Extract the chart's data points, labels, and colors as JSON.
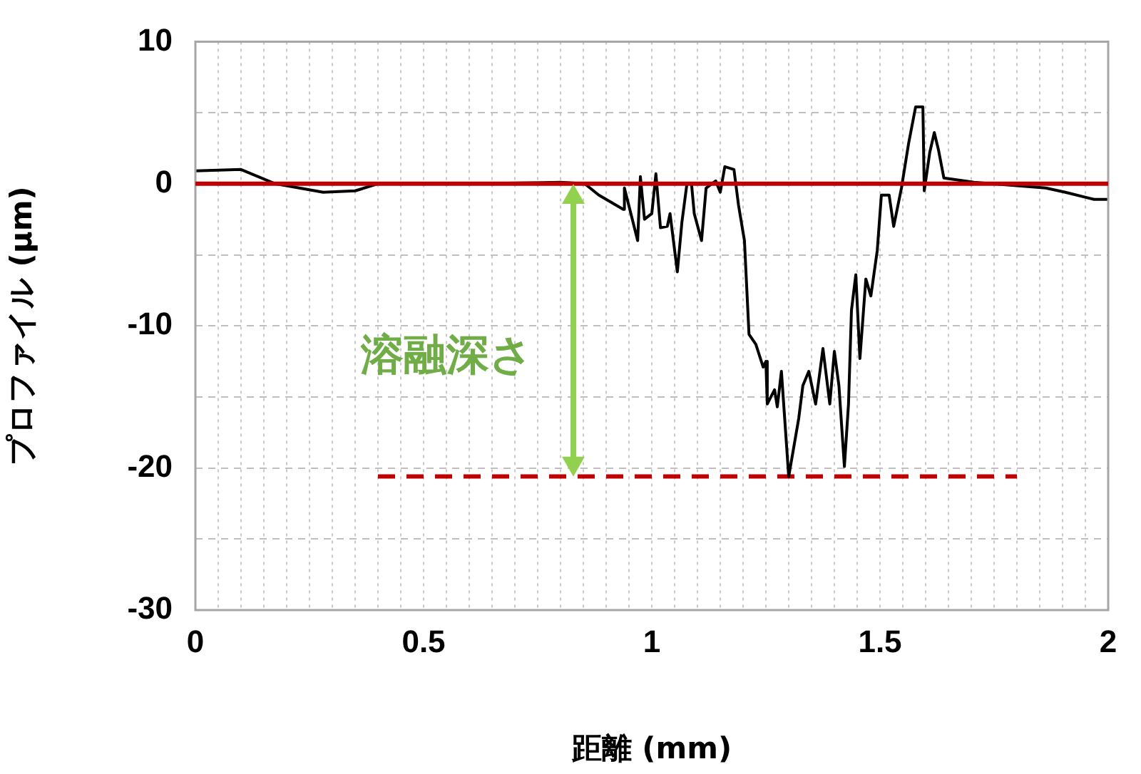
{
  "chart_data": {
    "type": "line",
    "xlabel": "距離 (mm)",
    "ylabel": "プロファイル (μm)",
    "xlim": [
      0,
      2
    ],
    "ylim": [
      -30,
      10
    ],
    "xticks": [
      0,
      {
        "value": 0.05,
        "label": null
      },
      {
        "value": 0.1,
        "label": null
      },
      {
        "value": 0.15,
        "label": null
      },
      {
        "value": 0.2,
        "label": null
      },
      {
        "value": 0.25,
        "label": null
      },
      {
        "value": 0.3,
        "label": null
      },
      {
        "value": 0.35,
        "label": null
      },
      {
        "value": 0.4,
        "label": null
      },
      {
        "value": 0.45,
        "label": null
      },
      0.5,
      {
        "value": 0.55,
        "label": null
      },
      {
        "value": 0.6,
        "label": null
      },
      {
        "value": 0.65,
        "label": null
      },
      {
        "value": 0.7,
        "label": null
      },
      {
        "value": 0.75,
        "label": null
      },
      {
        "value": 0.8,
        "label": null
      },
      {
        "value": 0.85,
        "label": null
      },
      {
        "value": 0.9,
        "label": null
      },
      {
        "value": 0.95,
        "label": null
      },
      1,
      {
        "value": 1.05,
        "label": null
      },
      {
        "value": 1.1,
        "label": null
      },
      {
        "value": 1.15,
        "label": null
      },
      {
        "value": 1.2,
        "label": null
      },
      {
        "value": 1.25,
        "label": null
      },
      {
        "value": 1.3,
        "label": null
      },
      {
        "value": 1.35,
        "label": null
      },
      {
        "value": 1.4,
        "label": null
      },
      {
        "value": 1.45,
        "label": null
      },
      1.5,
      {
        "value": 1.55,
        "label": null
      },
      {
        "value": 1.6,
        "label": null
      },
      {
        "value": 1.65,
        "label": null
      },
      {
        "value": 1.7,
        "label": null
      },
      {
        "value": 1.75,
        "label": null
      },
      {
        "value": 1.8,
        "label": null
      },
      {
        "value": 1.85,
        "label": null
      },
      {
        "value": 1.9,
        "label": null
      },
      {
        "value": 1.95,
        "label": null
      },
      2
    ],
    "yticks": [
      -30,
      {
        "value": -25,
        "label": null
      },
      -20,
      {
        "value": -15,
        "label": null
      },
      -10,
      {
        "value": -5,
        "label": null
      },
      0,
      {
        "value": 5,
        "label": null
      },
      10
    ],
    "grid": true,
    "marker": "none",
    "series": [
      {
        "color": "#000000",
        "x": [
          0,
          0.1,
          0.175,
          0.28,
          0.35,
          0.4,
          0.6,
          0.8,
          0.853,
          0.884,
          0.9375,
          0.94,
          0.969,
          0.975,
          0.984,
          1.0,
          1.009,
          1.019,
          1.034,
          1.04,
          1.056,
          1.066,
          1.077,
          1.087,
          1.093,
          1.109,
          1.119,
          1.14,
          1.15,
          1.16,
          1.18,
          1.19,
          1.203,
          1.213,
          1.228,
          1.244,
          1.25,
          1.253,
          1.269,
          1.275,
          1.284,
          1.3,
          1.322,
          1.331,
          1.344,
          1.359,
          1.375,
          1.39,
          1.4,
          1.41,
          1.422,
          1.431,
          1.4375,
          1.447,
          1.456,
          1.469,
          1.48,
          1.494,
          1.503,
          1.52,
          1.53,
          1.547,
          1.5625,
          1.578,
          1.594,
          1.597,
          1.609,
          1.619,
          1.628,
          1.64,
          1.706,
          1.863,
          1.906,
          1.969,
          2.0
        ],
        "values": [
          0.9,
          1.0,
          0,
          -0.6,
          -0.5,
          0,
          0,
          0.1,
          0,
          -0.8,
          -1.8,
          -0.3,
          -4.0,
          0.5,
          -2.5,
          -2.1,
          0.7,
          -3.1,
          -3.0,
          -2.1,
          -6.2,
          -2.7,
          0,
          0,
          -2.1,
          -4.0,
          -0.3,
          0.2,
          -0.6,
          1.2,
          1.0,
          -1.5,
          -4.0,
          -10.6,
          -11.3,
          -12.9,
          -12.5,
          -15.5,
          -14.5,
          -15.7,
          -13.2,
          -20.6,
          -16.5,
          -14.2,
          -13.2,
          -15.5,
          -11.6,
          -15.5,
          -11.8,
          -14.2,
          -19.9,
          -15.5,
          -8.9,
          -6.4,
          -12.3,
          -6.7,
          -7.9,
          -4.7,
          -0.8,
          -0.8,
          -3.0,
          -0.3,
          2.8,
          5.4,
          5.4,
          -0.5,
          2.2,
          3.6,
          2.4,
          0.4,
          0.1,
          -0.3,
          -0.6,
          -1.1,
          -1.1
        ]
      },
      {
        "color": "#c00000",
        "line_style": "dashed",
        "x": [
          0.4,
          1.8
        ],
        "values": [
          -20.6,
          -20.6
        ]
      }
    ],
    "ref_lines": [
      {
        "axis": "y",
        "value": 0,
        "color": "#c00000"
      }
    ],
    "annotations": [
      "溶融深さ"
    ]
  }
}
